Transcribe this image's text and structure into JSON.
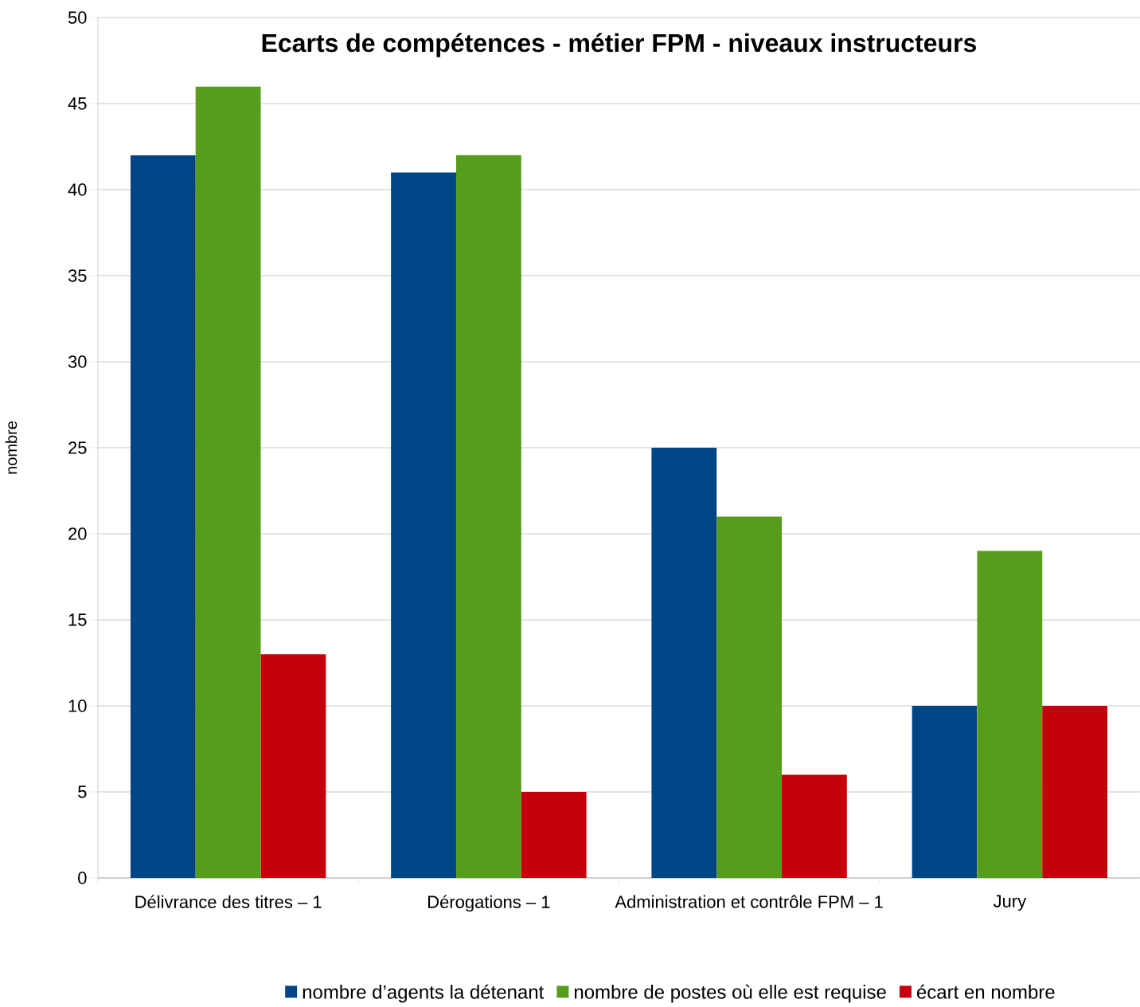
{
  "chart_data": {
    "type": "bar",
    "title": "Ecarts de compétences - métier FPM - niveaux instructeurs",
    "ylabel": "nombre",
    "categories": [
      "Délivrance des titres – 1",
      "Dérogations – 1",
      "Administration et contrôle FPM – 1",
      "Jury"
    ],
    "series": [
      {
        "name": "nombre d’agents la détenant",
        "color": "#004586",
        "values": [
          42,
          41,
          25,
          10
        ]
      },
      {
        "name": "nombre de postes où elle est requise",
        "color": "#579d1c",
        "values": [
          46,
          42,
          21,
          19
        ]
      },
      {
        "name": "écart en nombre",
        "color": "#c5000b",
        "values": [
          13,
          5,
          6,
          10
        ]
      }
    ],
    "ylim": [
      0,
      50
    ],
    "yticks": [
      0,
      5,
      10,
      15,
      20,
      25,
      30,
      35,
      40,
      45,
      50
    ],
    "grid": "y",
    "legend": "bottom"
  }
}
